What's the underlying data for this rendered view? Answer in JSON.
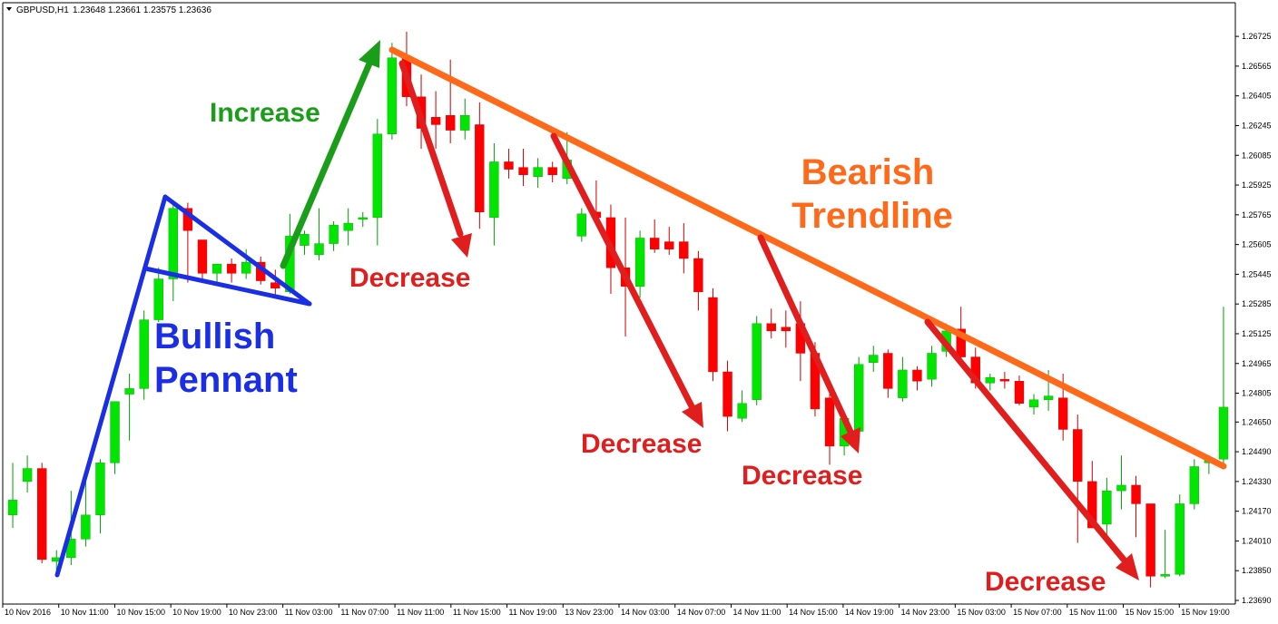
{
  "header": {
    "symbol": "GBPUSD,H1",
    "ohlc": "1.23648 1.23661 1.23575 1.23636"
  },
  "colors": {
    "bull": "#00e600",
    "bear": "#ff0000",
    "wick_bull": "#00a000",
    "wick_bear": "#cc0000",
    "pennant": "#1a2ee6",
    "increase": "#1a9e1a",
    "decrease": "#e11e1e",
    "trendline": "#ff6a1a"
  },
  "annotations": {
    "increase": "Increase",
    "decrease": "Decrease",
    "bullish": "Bullish",
    "pennant": "Pennant",
    "bearish": "Bearish",
    "trendline": "Trendline"
  },
  "chart_data": {
    "type": "candlestick",
    "ylim": [
      1.2369,
      1.2675
    ],
    "y_ticks": [
      "1.26725",
      "1.26565",
      "1.26405",
      "1.26245",
      "1.26085",
      "1.25925",
      "1.25765",
      "1.25605",
      "1.25445",
      "1.25285",
      "1.25125",
      "1.24965",
      "1.24805",
      "1.24650",
      "1.24490",
      "1.24330",
      "1.24170",
      "1.24010",
      "1.23850",
      "1.23690"
    ],
    "x_tick_labels": [
      "10 Nov 2016",
      "10 Nov 11:00",
      "10 Nov 15:00",
      "10 Nov 19:00",
      "10 Nov 23:00",
      "11 Nov 03:00",
      "11 Nov 07:00",
      "11 Nov 11:00",
      "11 Nov 15:00",
      "11 Nov 19:00",
      "13 Nov 23:00",
      "14 Nov 03:00",
      "14 Nov 07:00",
      "14 Nov 11:00",
      "14 Nov 15:00",
      "14 Nov 19:00",
      "14 Nov 23:00",
      "15 Nov 03:00",
      "15 Nov 07:00",
      "15 Nov 11:00",
      "15 Nov 15:00",
      "15 Nov 19:00"
    ],
    "candles": [
      {
        "o": 1.2415,
        "h": 1.2443,
        "l": 1.2408,
        "c": 1.2423
      },
      {
        "o": 1.2433,
        "h": 1.2447,
        "l": 1.2427,
        "c": 1.244
      },
      {
        "o": 1.244,
        "h": 1.2443,
        "l": 1.2389,
        "c": 1.2391
      },
      {
        "o": 1.239,
        "h": 1.2396,
        "l": 1.2383,
        "c": 1.2392
      },
      {
        "o": 1.2392,
        "h": 1.2428,
        "l": 1.2388,
        "c": 1.2402
      },
      {
        "o": 1.2402,
        "h": 1.2436,
        "l": 1.2398,
        "c": 1.2415
      },
      {
        "o": 1.2415,
        "h": 1.2445,
        "l": 1.2405,
        "c": 1.2443
      },
      {
        "o": 1.2443,
        "h": 1.2476,
        "l": 1.2437,
        "c": 1.2476
      },
      {
        "o": 1.248,
        "h": 1.2491,
        "l": 1.2455,
        "c": 1.2483
      },
      {
        "o": 1.2483,
        "h": 1.2525,
        "l": 1.2477,
        "c": 1.252
      },
      {
        "o": 1.252,
        "h": 1.2548,
        "l": 1.2515,
        "c": 1.2542
      },
      {
        "o": 1.2542,
        "h": 1.2582,
        "l": 1.253,
        "c": 1.258
      },
      {
        "o": 1.258,
        "h": 1.2583,
        "l": 1.254,
        "c": 1.2568
      },
      {
        "o": 1.2563,
        "h": 1.2563,
        "l": 1.254,
        "c": 1.2545
      },
      {
        "o": 1.2545,
        "h": 1.255,
        "l": 1.254,
        "c": 1.255
      },
      {
        "o": 1.255,
        "h": 1.2553,
        "l": 1.254,
        "c": 1.2545
      },
      {
        "o": 1.2545,
        "h": 1.2558,
        "l": 1.2542,
        "c": 1.2551
      },
      {
        "o": 1.2551,
        "h": 1.2554,
        "l": 1.2539,
        "c": 1.2541
      },
      {
        "o": 1.254,
        "h": 1.2547,
        "l": 1.2533,
        "c": 1.2537
      },
      {
        "o": 1.2535,
        "h": 1.2577,
        "l": 1.2534,
        "c": 1.2565
      },
      {
        "o": 1.256,
        "h": 1.2568,
        "l": 1.2555,
        "c": 1.2566
      },
      {
        "o": 1.2555,
        "h": 1.258,
        "l": 1.2552,
        "c": 1.2561
      },
      {
        "o": 1.2561,
        "h": 1.2573,
        "l": 1.2557,
        "c": 1.2571
      },
      {
        "o": 1.2568,
        "h": 1.258,
        "l": 1.256,
        "c": 1.2572
      },
      {
        "o": 1.2574,
        "h": 1.2578,
        "l": 1.257,
        "c": 1.2575
      },
      {
        "o": 1.2575,
        "h": 1.2628,
        "l": 1.256,
        "c": 1.262
      },
      {
        "o": 1.262,
        "h": 1.2669,
        "l": 1.2617,
        "c": 1.2661
      },
      {
        "o": 1.2662,
        "h": 1.2675,
        "l": 1.2635,
        "c": 1.264
      },
      {
        "o": 1.264,
        "h": 1.2652,
        "l": 1.2612,
        "c": 1.2623
      },
      {
        "o": 1.2629,
        "h": 1.2643,
        "l": 1.2612,
        "c": 1.2625
      },
      {
        "o": 1.263,
        "h": 1.266,
        "l": 1.2615,
        "c": 1.2622
      },
      {
        "o": 1.2622,
        "h": 1.2639,
        "l": 1.2617,
        "c": 1.263
      },
      {
        "o": 1.2625,
        "h": 1.2637,
        "l": 1.2569,
        "c": 1.2578
      },
      {
        "o": 1.2575,
        "h": 1.2615,
        "l": 1.256,
        "c": 1.2605
      },
      {
        "o": 1.2605,
        "h": 1.2612,
        "l": 1.2596,
        "c": 1.2601
      },
      {
        "o": 1.2602,
        "h": 1.2612,
        "l": 1.2592,
        "c": 1.2598
      },
      {
        "o": 1.2597,
        "h": 1.2607,
        "l": 1.2591,
        "c": 1.2602
      },
      {
        "o": 1.2602,
        "h": 1.2605,
        "l": 1.2594,
        "c": 1.2598
      },
      {
        "o": 1.2596,
        "h": 1.2621,
        "l": 1.2593,
        "c": 1.2606
      },
      {
        "o": 1.2565,
        "h": 1.258,
        "l": 1.2562,
        "c": 1.2577
      },
      {
        "o": 1.2578,
        "h": 1.2595,
        "l": 1.2575,
        "c": 1.2575
      },
      {
        "o": 1.2575,
        "h": 1.2582,
        "l": 1.2534,
        "c": 1.2548
      },
      {
        "o": 1.2548,
        "h": 1.2575,
        "l": 1.2511,
        "c": 1.2538
      },
      {
        "o": 1.2538,
        "h": 1.2568,
        "l": 1.2532,
        "c": 1.2564
      },
      {
        "o": 1.2564,
        "h": 1.2574,
        "l": 1.2556,
        "c": 1.2558
      },
      {
        "o": 1.2562,
        "h": 1.257,
        "l": 1.2555,
        "c": 1.2558
      },
      {
        "o": 1.2562,
        "h": 1.2572,
        "l": 1.2545,
        "c": 1.2553
      },
      {
        "o": 1.2553,
        "h": 1.2557,
        "l": 1.2525,
        "c": 1.2535
      },
      {
        "o": 1.2532,
        "h": 1.2537,
        "l": 1.2487,
        "c": 1.2492
      },
      {
        "o": 1.2492,
        "h": 1.2498,
        "l": 1.246,
        "c": 1.2468
      },
      {
        "o": 1.2467,
        "h": 1.2482,
        "l": 1.2465,
        "c": 1.2475
      },
      {
        "o": 1.2477,
        "h": 1.2522,
        "l": 1.2474,
        "c": 1.2518
      },
      {
        "o": 1.2518,
        "h": 1.2526,
        "l": 1.251,
        "c": 1.2514
      },
      {
        "o": 1.2516,
        "h": 1.2525,
        "l": 1.2505,
        "c": 1.2514
      },
      {
        "o": 1.2518,
        "h": 1.253,
        "l": 1.2487,
        "c": 1.2502
      },
      {
        "o": 1.2502,
        "h": 1.2508,
        "l": 1.2468,
        "c": 1.2472
      },
      {
        "o": 1.2478,
        "h": 1.2485,
        "l": 1.2442,
        "c": 1.2452
      },
      {
        "o": 1.2452,
        "h": 1.2468,
        "l": 1.2447,
        "c": 1.2467
      },
      {
        "o": 1.246,
        "h": 1.25,
        "l": 1.2456,
        "c": 1.2496
      },
      {
        "o": 1.2497,
        "h": 1.2506,
        "l": 1.2492,
        "c": 1.2501
      },
      {
        "o": 1.2502,
        "h": 1.2504,
        "l": 1.2478,
        "c": 1.2483
      },
      {
        "o": 1.2478,
        "h": 1.25,
        "l": 1.2476,
        "c": 1.2493
      },
      {
        "o": 1.2493,
        "h": 1.2495,
        "l": 1.2482,
        "c": 1.2487
      },
      {
        "o": 1.2488,
        "h": 1.2506,
        "l": 1.2484,
        "c": 1.2502
      },
      {
        "o": 1.2503,
        "h": 1.2518,
        "l": 1.25,
        "c": 1.2514
      },
      {
        "o": 1.2515,
        "h": 1.2527,
        "l": 1.2498,
        "c": 1.25
      },
      {
        "o": 1.25,
        "h": 1.2505,
        "l": 1.2483,
        "c": 1.2486
      },
      {
        "o": 1.2486,
        "h": 1.2491,
        "l": 1.2482,
        "c": 1.2489
      },
      {
        "o": 1.2488,
        "h": 1.2492,
        "l": 1.2483,
        "c": 1.2487
      },
      {
        "o": 1.2487,
        "h": 1.249,
        "l": 1.2474,
        "c": 1.2475
      },
      {
        "o": 1.2473,
        "h": 1.248,
        "l": 1.2469,
        "c": 1.2477
      },
      {
        "o": 1.2477,
        "h": 1.2493,
        "l": 1.2471,
        "c": 1.2479
      },
      {
        "o": 1.2478,
        "h": 1.2491,
        "l": 1.2455,
        "c": 1.2461
      },
      {
        "o": 1.2461,
        "h": 1.2469,
        "l": 1.24,
        "c": 1.2433
      },
      {
        "o": 1.2433,
        "h": 1.2444,
        "l": 1.2408,
        "c": 1.2408
      },
      {
        "o": 1.241,
        "h": 1.2435,
        "l": 1.24,
        "c": 1.2428
      },
      {
        "o": 1.2428,
        "h": 1.2447,
        "l": 1.2418,
        "c": 1.2431
      },
      {
        "o": 1.2431,
        "h": 1.2436,
        "l": 1.2403,
        "c": 1.2421
      },
      {
        "o": 1.2421,
        "h": 1.2421,
        "l": 1.2376,
        "c": 1.2382
      },
      {
        "o": 1.2382,
        "h": 1.2407,
        "l": 1.2381,
        "c": 1.2383
      },
      {
        "o": 1.2383,
        "h": 1.2426,
        "l": 1.2382,
        "c": 1.2421
      },
      {
        "o": 1.2421,
        "h": 1.2445,
        "l": 1.2418,
        "c": 1.2441
      },
      {
        "o": 1.2443,
        "h": 1.2447,
        "l": 1.2437,
        "c": 1.2445
      },
      {
        "o": 1.2445,
        "h": 1.2527,
        "l": 1.244,
        "c": 1.2473
      }
    ]
  }
}
